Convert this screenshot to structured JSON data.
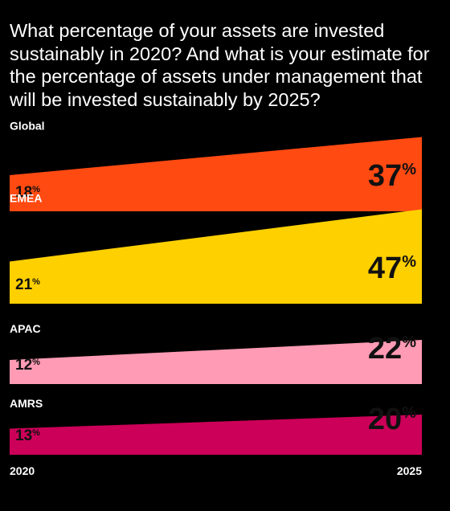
{
  "title": "What percentage of your assets are invested sustainably in 2020? And what is your estimate for the percentage of assets under management that will be invested sustainably by 2025?",
  "chart_data": {
    "type": "area",
    "title": "What percentage of your assets are invested sustainably in 2020? And what is your estimate for the percentage of assets under management that will be invested sustainably by 2025?",
    "x": [
      "2020",
      "2025"
    ],
    "unit": "%",
    "series": [
      {
        "name": "Global",
        "values": [
          18,
          37
        ],
        "color": "#ff4a12"
      },
      {
        "name": "EMEA",
        "values": [
          21,
          47
        ],
        "color": "#ffd000"
      },
      {
        "name": "APAC",
        "values": [
          12,
          22
        ],
        "color": "#ff9bb4"
      },
      {
        "name": "AMRS",
        "values": [
          13,
          20
        ],
        "color": "#cc0058"
      }
    ]
  }
}
